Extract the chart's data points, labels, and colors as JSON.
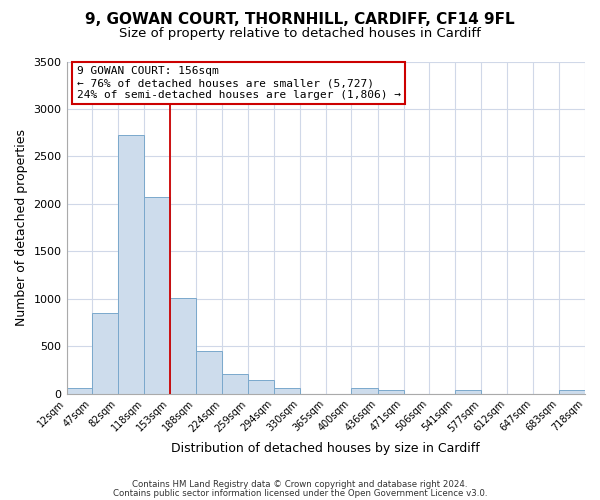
{
  "title1": "9, GOWAN COURT, THORNHILL, CARDIFF, CF14 9FL",
  "title2": "Size of property relative to detached houses in Cardiff",
  "xlabel": "Distribution of detached houses by size in Cardiff",
  "ylabel": "Number of detached properties",
  "bar_edges": [
    12,
    47,
    82,
    118,
    153,
    188,
    224,
    259,
    294,
    330,
    365,
    400,
    436,
    471,
    506,
    541,
    577,
    612,
    647,
    683,
    718
  ],
  "bar_heights": [
    60,
    855,
    2730,
    2075,
    1005,
    455,
    210,
    145,
    60,
    0,
    0,
    60,
    40,
    0,
    0,
    40,
    0,
    0,
    0,
    40
  ],
  "bar_color": "#cddcec",
  "bar_edgecolor": "#7aa8cc",
  "vline_x": 153,
  "vline_color": "#cc0000",
  "annotation_title": "9 GOWAN COURT: 156sqm",
  "annotation_line1": "← 76% of detached houses are smaller (5,727)",
  "annotation_line2": "24% of semi-detached houses are larger (1,806) →",
  "annotation_box_facecolor": "white",
  "annotation_box_edgecolor": "#cc0000",
  "ylim": [
    0,
    3500
  ],
  "yticks": [
    0,
    500,
    1000,
    1500,
    2000,
    2500,
    3000,
    3500
  ],
  "footer1": "Contains HM Land Registry data © Crown copyright and database right 2024.",
  "footer2": "Contains public sector information licensed under the Open Government Licence v3.0.",
  "bg_color": "#ffffff",
  "plot_bg_color": "#ffffff",
  "grid_color": "#d0d8e8",
  "title1_fontsize": 11,
  "title2_fontsize": 9.5,
  "tick_labels": [
    "12sqm",
    "47sqm",
    "82sqm",
    "118sqm",
    "153sqm",
    "188sqm",
    "224sqm",
    "259sqm",
    "294sqm",
    "330sqm",
    "365sqm",
    "400sqm",
    "436sqm",
    "471sqm",
    "506sqm",
    "541sqm",
    "577sqm",
    "612sqm",
    "647sqm",
    "683sqm",
    "718sqm"
  ]
}
